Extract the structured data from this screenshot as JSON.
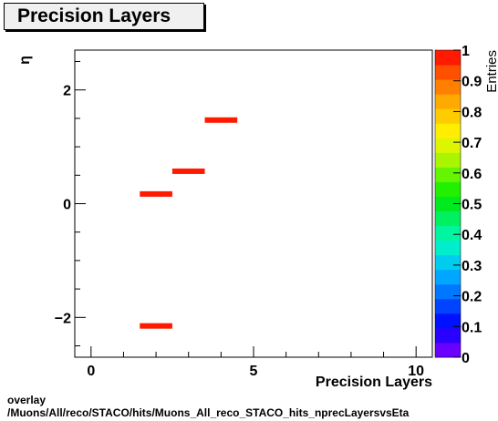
{
  "title": "Precision Layers",
  "footer": {
    "line1": "overlay",
    "line2": "/Muons/All/reco/STACO/hits/Muons_All_reco_STACO_hits_nprecLayersvsEta"
  },
  "chart_data": {
    "type": "heatmap",
    "title": "Precision Layers",
    "xlabel": "Precision Layers",
    "ylabel": "η",
    "zlabel": "Entries",
    "xlim": [
      -0.5,
      10.5
    ],
    "ylim": [
      -2.7,
      2.7
    ],
    "zlim": [
      0,
      1
    ],
    "x_ticks": [
      0,
      5,
      10
    ],
    "y_ticks": [
      -2,
      0,
      2
    ],
    "z_ticks": [
      "0",
      "0.1",
      "0.2",
      "0.3",
      "0.4",
      "0.5",
      "0.6",
      "0.7",
      "0.8",
      "0.9",
      "1"
    ],
    "cells": [
      {
        "x": [
          1.5,
          2.5
        ],
        "y": -2.15,
        "z": 1
      },
      {
        "x": [
          1.5,
          2.5
        ],
        "y": 0.17,
        "z": 1
      },
      {
        "x": [
          2.5,
          3.5
        ],
        "y": 0.57,
        "z": 1
      },
      {
        "x": [
          3.5,
          4.5
        ],
        "y": 1.47,
        "z": 1
      }
    ],
    "palette": [
      "#6a00ff",
      "#2a00ff",
      "#0011ff",
      "#0044ff",
      "#0077ff",
      "#00a6ff",
      "#00ccee",
      "#00eecc",
      "#00f5a0",
      "#00f060",
      "#00ea20",
      "#22f000",
      "#66f500",
      "#aaf500",
      "#ddf500",
      "#ffee00",
      "#ffcc00",
      "#ffaa00",
      "#ff8000",
      "#ff5000",
      "#ff1a00"
    ],
    "grid": false
  }
}
